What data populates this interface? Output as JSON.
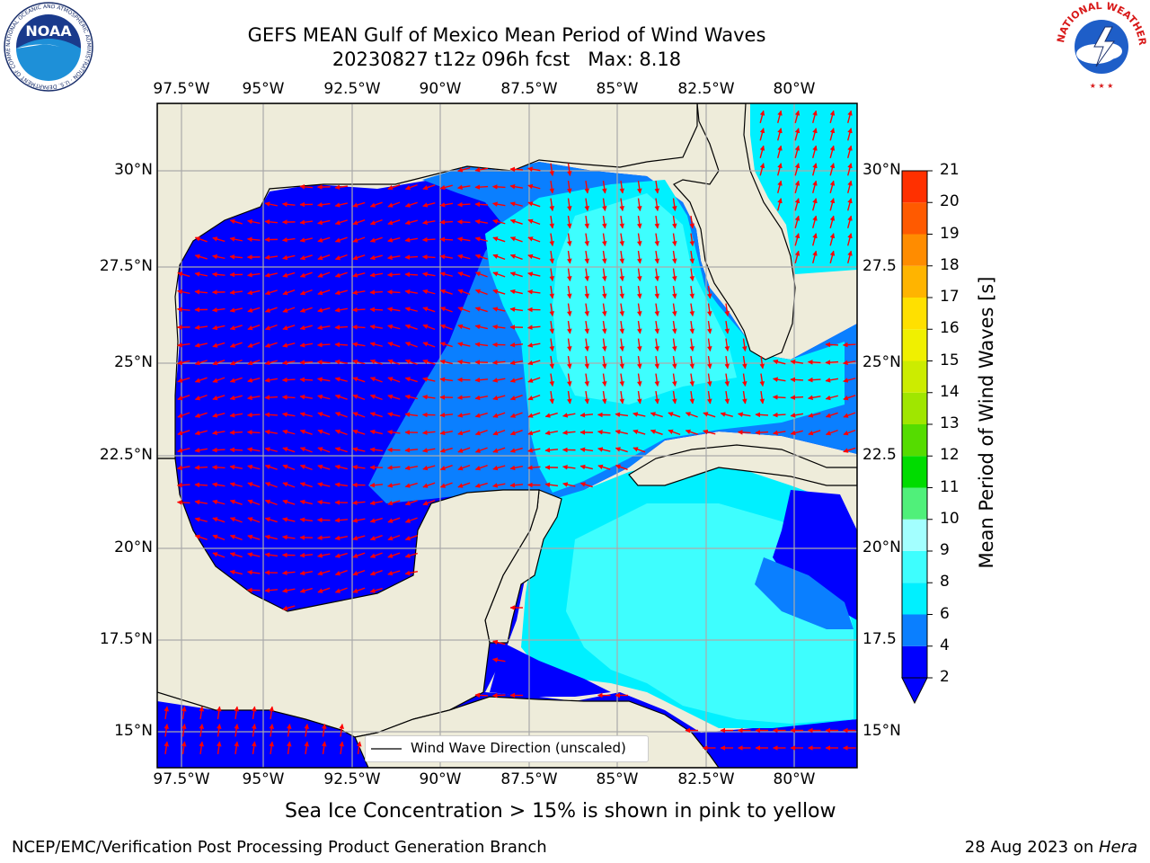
{
  "header": {
    "title_line1": "GEFS MEAN Gulf of Mexico Mean Period of Wind Waves",
    "title_line2": "20230827 t12z 096h fcst   Max: 8.18"
  },
  "logos": {
    "left_text": "NOAA",
    "left_ring_text": "NATIONAL OCEANIC AND ATMOSPHERIC ADMINISTRATION · U.S. DEPARTMENT OF COMMERCE",
    "right_ring_text": "NATIONAL WEATHER SERVICE"
  },
  "map": {
    "lon_labels": [
      "97.5°W",
      "95°W",
      "92.5°W",
      "90°W",
      "87.5°W",
      "85°W",
      "82.5°W",
      "80°W"
    ],
    "lat_labels_left": [
      "30°N",
      "27.5°N",
      "25°N",
      "22.5°N",
      "20°N",
      "17.5°N",
      "15°N"
    ],
    "lat_labels_right": [
      "30°N",
      "27.5",
      "25°N",
      "22.5",
      "20°N",
      "17.5",
      "15°N"
    ],
    "legend_label": "Wind Wave Direction (unscaled)",
    "colors": {
      "land": "#EEECDA",
      "vector": "#FF0000",
      "grid": "#AAAAAA"
    }
  },
  "colorbar": {
    "label": "Mean Period of Wind Waves [s]",
    "levels": [
      {
        "value": "2",
        "color": "#0000FF"
      },
      {
        "value": "4",
        "color": "#0A7FFF"
      },
      {
        "value": "6",
        "color": "#00F0FF"
      },
      {
        "value": "8",
        "color": "#3EFEFE"
      },
      {
        "value": "9",
        "color": "#A3FFFF"
      },
      {
        "value": "10",
        "color": "#50F07A"
      },
      {
        "value": "11",
        "color": "#00DC00"
      },
      {
        "value": "12",
        "color": "#55DC00"
      },
      {
        "value": "13",
        "color": "#A0E600"
      },
      {
        "value": "14",
        "color": "#CCEC00"
      },
      {
        "value": "15",
        "color": "#F0F000"
      },
      {
        "value": "16",
        "color": "#FFE000"
      },
      {
        "value": "17",
        "color": "#FFB400"
      },
      {
        "value": "18",
        "color": "#FF8C00"
      },
      {
        "value": "19",
        "color": "#FF5A00"
      },
      {
        "value": "20",
        "color": "#FF3000"
      },
      {
        "value": "21",
        "color": "#FF0000"
      }
    ]
  },
  "caption": "Sea Ice Concentration > 15% is shown in pink to yellow",
  "footer": {
    "left": "NCEP/EMC/Verification Post Processing Product Generation Branch",
    "right_date": "28 Aug 2023 on ",
    "right_host": "Hera"
  }
}
